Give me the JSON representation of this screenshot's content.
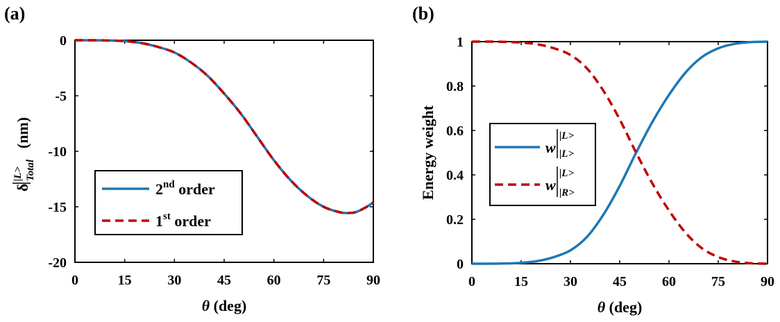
{
  "colors": {
    "blue": "#1f77b4",
    "red": "#c00000",
    "axis": "#000000"
  },
  "chart_data": [
    {
      "type": "line",
      "panel_label": "(a)",
      "xlabel_symbol": "θ",
      "xlabel_text": " (deg)",
      "ylabel_symbol": "δ",
      "ylabel_super": "|L>",
      "ylabel_sub": "Total",
      "ylabel_text": " (nm)",
      "xlim": [
        0,
        90
      ],
      "ylim": [
        -20,
        0
      ],
      "xticks": [
        0,
        15,
        30,
        45,
        60,
        75,
        90
      ],
      "yticks": [
        0,
        -5,
        -10,
        -15,
        -20
      ],
      "ytick_labels": [
        "0",
        "-5",
        "-10",
        "-15",
        "-20"
      ],
      "grid": false,
      "legend_position": "lower-left",
      "x": [
        0,
        5,
        10,
        15,
        20,
        25,
        30,
        35,
        40,
        45,
        50,
        55,
        60,
        65,
        70,
        75,
        80,
        83,
        85,
        88,
        90
      ],
      "series": [
        {
          "name_base": "2",
          "name_sup": "nd",
          "name_rest": " order",
          "style": "solid",
          "color": "#1f77b4",
          "values": [
            0,
            0,
            -0.02,
            -0.08,
            -0.25,
            -0.6,
            -1.1,
            -2.0,
            -3.2,
            -4.8,
            -6.6,
            -8.7,
            -10.8,
            -12.6,
            -14.0,
            -15.0,
            -15.5,
            -15.55,
            -15.45,
            -15.0,
            -14.6
          ]
        },
        {
          "name_base": "1",
          "name_sup": "st",
          "name_rest": " order",
          "style": "dashed",
          "color": "#c00000",
          "values": [
            0,
            0,
            -0.02,
            -0.08,
            -0.25,
            -0.6,
            -1.1,
            -2.0,
            -3.2,
            -4.8,
            -6.6,
            -8.7,
            -10.8,
            -12.6,
            -14.0,
            -15.0,
            -15.5,
            -15.55,
            -15.45,
            -15.0,
            -14.6
          ]
        }
      ]
    },
    {
      "type": "line",
      "panel_label": "(b)",
      "xlabel_symbol": "θ",
      "xlabel_text": " (deg)",
      "ylabel": "Energy weight",
      "xlim": [
        0,
        90
      ],
      "ylim": [
        0,
        1
      ],
      "xticks": [
        0,
        15,
        30,
        45,
        60,
        75,
        90
      ],
      "yticks": [
        1,
        0.8,
        0.6,
        0.4,
        0.2,
        0
      ],
      "ytick_labels": [
        "1",
        "0.8",
        "0.6",
        "0.4",
        "0.2",
        "0"
      ],
      "grid": false,
      "legend_position": "center-left",
      "x": [
        0,
        5,
        10,
        15,
        20,
        25,
        30,
        35,
        40,
        45,
        50,
        55,
        60,
        65,
        70,
        75,
        80,
        85,
        90
      ],
      "series": [
        {
          "name_base": "w",
          "name_sup": "|L>",
          "name_sub": "|L>",
          "style": "solid",
          "color": "#1f77b4",
          "values": [
            0,
            0,
            0.001,
            0.004,
            0.012,
            0.03,
            0.06,
            0.12,
            0.22,
            0.35,
            0.5,
            0.64,
            0.76,
            0.86,
            0.93,
            0.97,
            0.99,
            0.998,
            1.0
          ]
        },
        {
          "name_base": "w",
          "name_sup": "|L>",
          "name_sub": "|R>",
          "style": "dashed",
          "color": "#c00000",
          "values": [
            1,
            1,
            0.999,
            0.996,
            0.988,
            0.97,
            0.94,
            0.88,
            0.78,
            0.65,
            0.5,
            0.36,
            0.24,
            0.14,
            0.07,
            0.03,
            0.01,
            0.002,
            0
          ]
        }
      ]
    }
  ]
}
